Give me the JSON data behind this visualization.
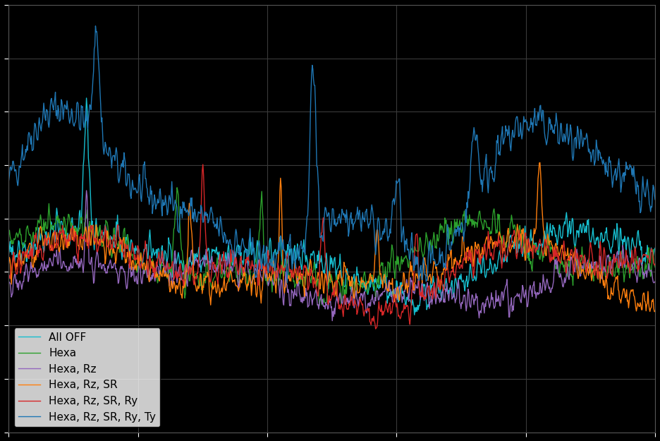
{
  "title": "",
  "xlabel": "",
  "ylabel": "",
  "figure_facecolor": "#000000",
  "axes_facecolor": "#000000",
  "grid_color": "#3a3a3a",
  "legend_labels": [
    "Hexa, Rz, SR, Ry, Ty",
    "Hexa, Rz, SR, Ry",
    "Hexa, Rz, SR",
    "Hexa, Rz",
    "Hexa",
    "All OFF"
  ],
  "line_colors": [
    "#1f77b4",
    "#d62728",
    "#ff7f0e",
    "#9467bd",
    "#2ca02c",
    "#17becf"
  ],
  "line_widths": [
    1.0,
    1.0,
    1.0,
    1.0,
    1.0,
    1.0
  ],
  "n_points": 1000,
  "seed": 42
}
